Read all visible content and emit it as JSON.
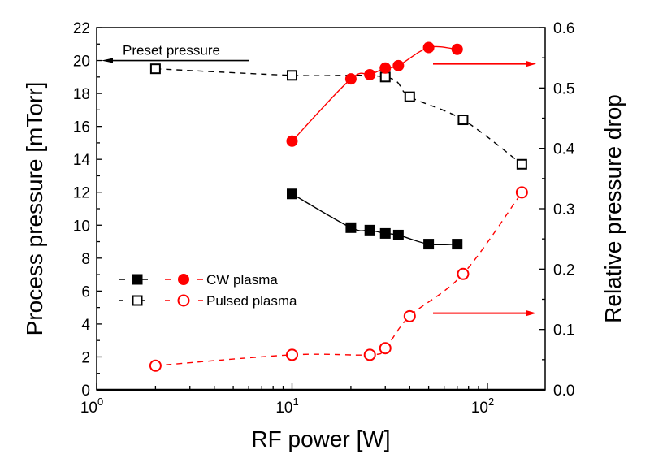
{
  "chart_data": {
    "type": "scatter",
    "title": "",
    "xlabel": "RF power [W]",
    "ylabel_left": "Process pressure [mTorr]",
    "ylabel_right": "Relative pressure drop",
    "xscale": "log",
    "xlim": [
      1,
      200
    ],
    "ylim_left": [
      0,
      22
    ],
    "ylim_right": [
      0.0,
      0.6
    ],
    "x_ticks": [
      {
        "value": 1,
        "base": "10",
        "exp": "0"
      },
      {
        "value": 10,
        "base": "10",
        "exp": "1"
      },
      {
        "value": 100,
        "base": "10",
        "exp": "2"
      }
    ],
    "y_ticks_left": [
      "0",
      "2",
      "4",
      "6",
      "8",
      "10",
      "12",
      "14",
      "16",
      "18",
      "20",
      "22"
    ],
    "y_ticks_right": [
      "0.0",
      "0.1",
      "0.2",
      "0.3",
      "0.4",
      "0.5",
      "0.6"
    ],
    "grid": false,
    "series": [
      {
        "name": "CW plasma (pressure)",
        "axis": "left",
        "marker": "filled-square",
        "line": "solid",
        "color": "#000000",
        "x": [
          10,
          20,
          25,
          30,
          35,
          50,
          70
        ],
        "y": [
          11.9,
          9.85,
          9.7,
          9.5,
          9.4,
          8.85,
          8.85
        ]
      },
      {
        "name": "Pulsed plasma (pressure)",
        "axis": "left",
        "marker": "open-square",
        "line": "dashed",
        "color": "#000000",
        "x": [
          2,
          10,
          30,
          40,
          75,
          150
        ],
        "y": [
          19.5,
          19.1,
          19.0,
          17.8,
          16.4,
          13.7
        ]
      },
      {
        "name": "CW plasma (relative drop)",
        "axis": "right",
        "marker": "filled-circle",
        "line": "solid",
        "color": "#ff0000",
        "x": [
          10,
          20,
          25,
          30,
          35,
          50,
          70
        ],
        "y": [
          0.412,
          0.515,
          0.522,
          0.533,
          0.537,
          0.567,
          0.564
        ]
      },
      {
        "name": "Pulsed plasma (relative drop)",
        "axis": "right",
        "marker": "open-circle",
        "line": "dashed",
        "color": "#ff0000",
        "x": [
          2,
          10,
          25,
          30,
          40,
          75,
          150
        ],
        "y": [
          0.04,
          0.058,
          0.058,
          0.069,
          0.122,
          0.192,
          0.327
        ]
      }
    ],
    "legend": {
      "placement": "lower-left",
      "entries": [
        {
          "label": "CW plasma",
          "markers": [
            "filled-square",
            "filled-circle"
          ]
        },
        {
          "label": "Pulsed plasma",
          "markers": [
            "open-square",
            "open-circle"
          ]
        }
      ]
    },
    "annotations": [
      {
        "text": "Preset pressure",
        "type": "arrow-left",
        "axis": "left",
        "y": 20,
        "x_from": 6,
        "x_to": 1
      },
      {
        "text": "",
        "type": "arrow-right",
        "axis": "right",
        "y": 0.54,
        "note": "points to right axis (CW)"
      },
      {
        "text": "",
        "type": "arrow-right",
        "axis": "right",
        "y": 0.127,
        "note": "points to right axis (Pulsed)"
      }
    ]
  }
}
